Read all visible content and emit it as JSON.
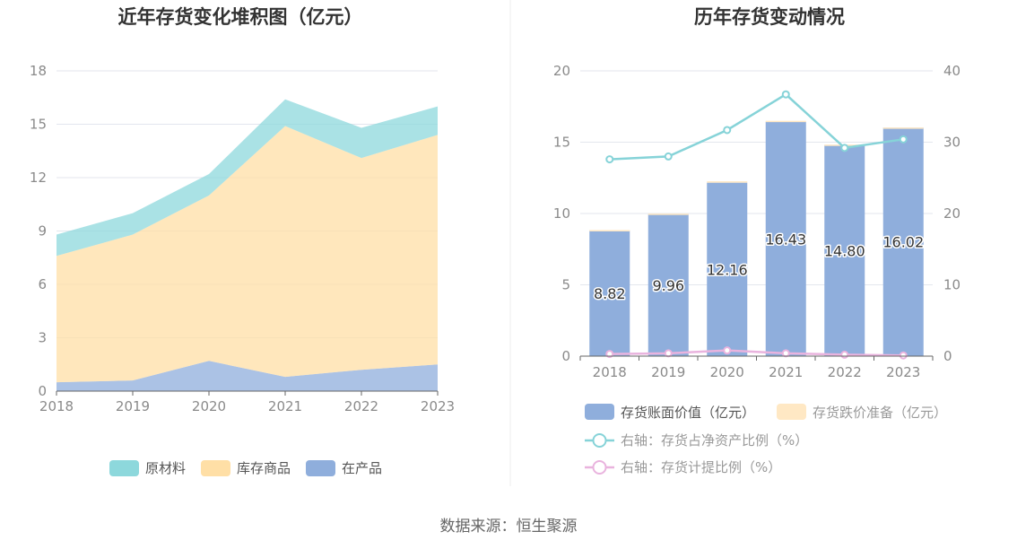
{
  "source": "数据来源：恒生聚源",
  "chart_data": [
    {
      "type": "area",
      "stacked": true,
      "title": "近年存货变化堆积图（亿元）",
      "x": [
        "2018",
        "2019",
        "2020",
        "2021",
        "2022",
        "2023"
      ],
      "ylim": [
        0,
        18
      ],
      "yticks": [
        "0",
        "3",
        "6",
        "9",
        "12",
        "15",
        "18"
      ],
      "grid": true,
      "legend_position": "bottom",
      "series": [
        {
          "name": "在产品",
          "color": "#8FAEDC",
          "values": [
            0.5,
            0.6,
            1.7,
            0.8,
            1.2,
            1.5
          ]
        },
        {
          "name": "库存商品",
          "color": "#FFDFA6",
          "values": [
            7.1,
            8.2,
            9.3,
            14.1,
            11.9,
            12.9
          ]
        },
        {
          "name": "原材料",
          "color": "#8DD8DC",
          "values": [
            1.2,
            1.2,
            1.2,
            1.5,
            1.7,
            1.6
          ]
        }
      ]
    },
    {
      "type": "bar",
      "stacked": true,
      "title": "历年存货变动情况",
      "categories": [
        "2018",
        "2019",
        "2020",
        "2021",
        "2022",
        "2023"
      ],
      "ylim_left": [
        0,
        20
      ],
      "yticks_left": [
        "0",
        "5",
        "10",
        "15",
        "20"
      ],
      "ylim_right": [
        0,
        40
      ],
      "yticks_right": [
        "0",
        "10",
        "20",
        "30",
        "40"
      ],
      "grid": true,
      "legend_position": "bottom",
      "series": [
        {
          "name": "存货账面价值（亿元）",
          "color": "#8FAEDC",
          "axis": "left",
          "kind": "bar",
          "values": [
            8.82,
            9.96,
            12.16,
            16.43,
            14.8,
            16.02
          ],
          "labels": [
            "8.82",
            "9.96",
            "12.16",
            "16.43",
            "14.80",
            "16.02"
          ]
        },
        {
          "name": "存货跌价准备（亿元）",
          "color": "#FFE8C4",
          "axis": "left",
          "kind": "bar",
          "values": [
            0.02,
            0.03,
            0.1,
            0.07,
            0.03,
            0.01
          ]
        },
        {
          "name": "右轴：存货占净资产比例（%）",
          "color": "#86D3D8",
          "axis": "right",
          "kind": "line",
          "values": [
            27.6,
            28.0,
            31.7,
            36.7,
            29.2,
            30.4
          ]
        },
        {
          "name": "右轴：存货计提比例（%）",
          "color": "#E9B3DE",
          "axis": "right",
          "kind": "line",
          "values": [
            0.3,
            0.4,
            0.8,
            0.4,
            0.2,
            0.1
          ]
        }
      ]
    }
  ]
}
